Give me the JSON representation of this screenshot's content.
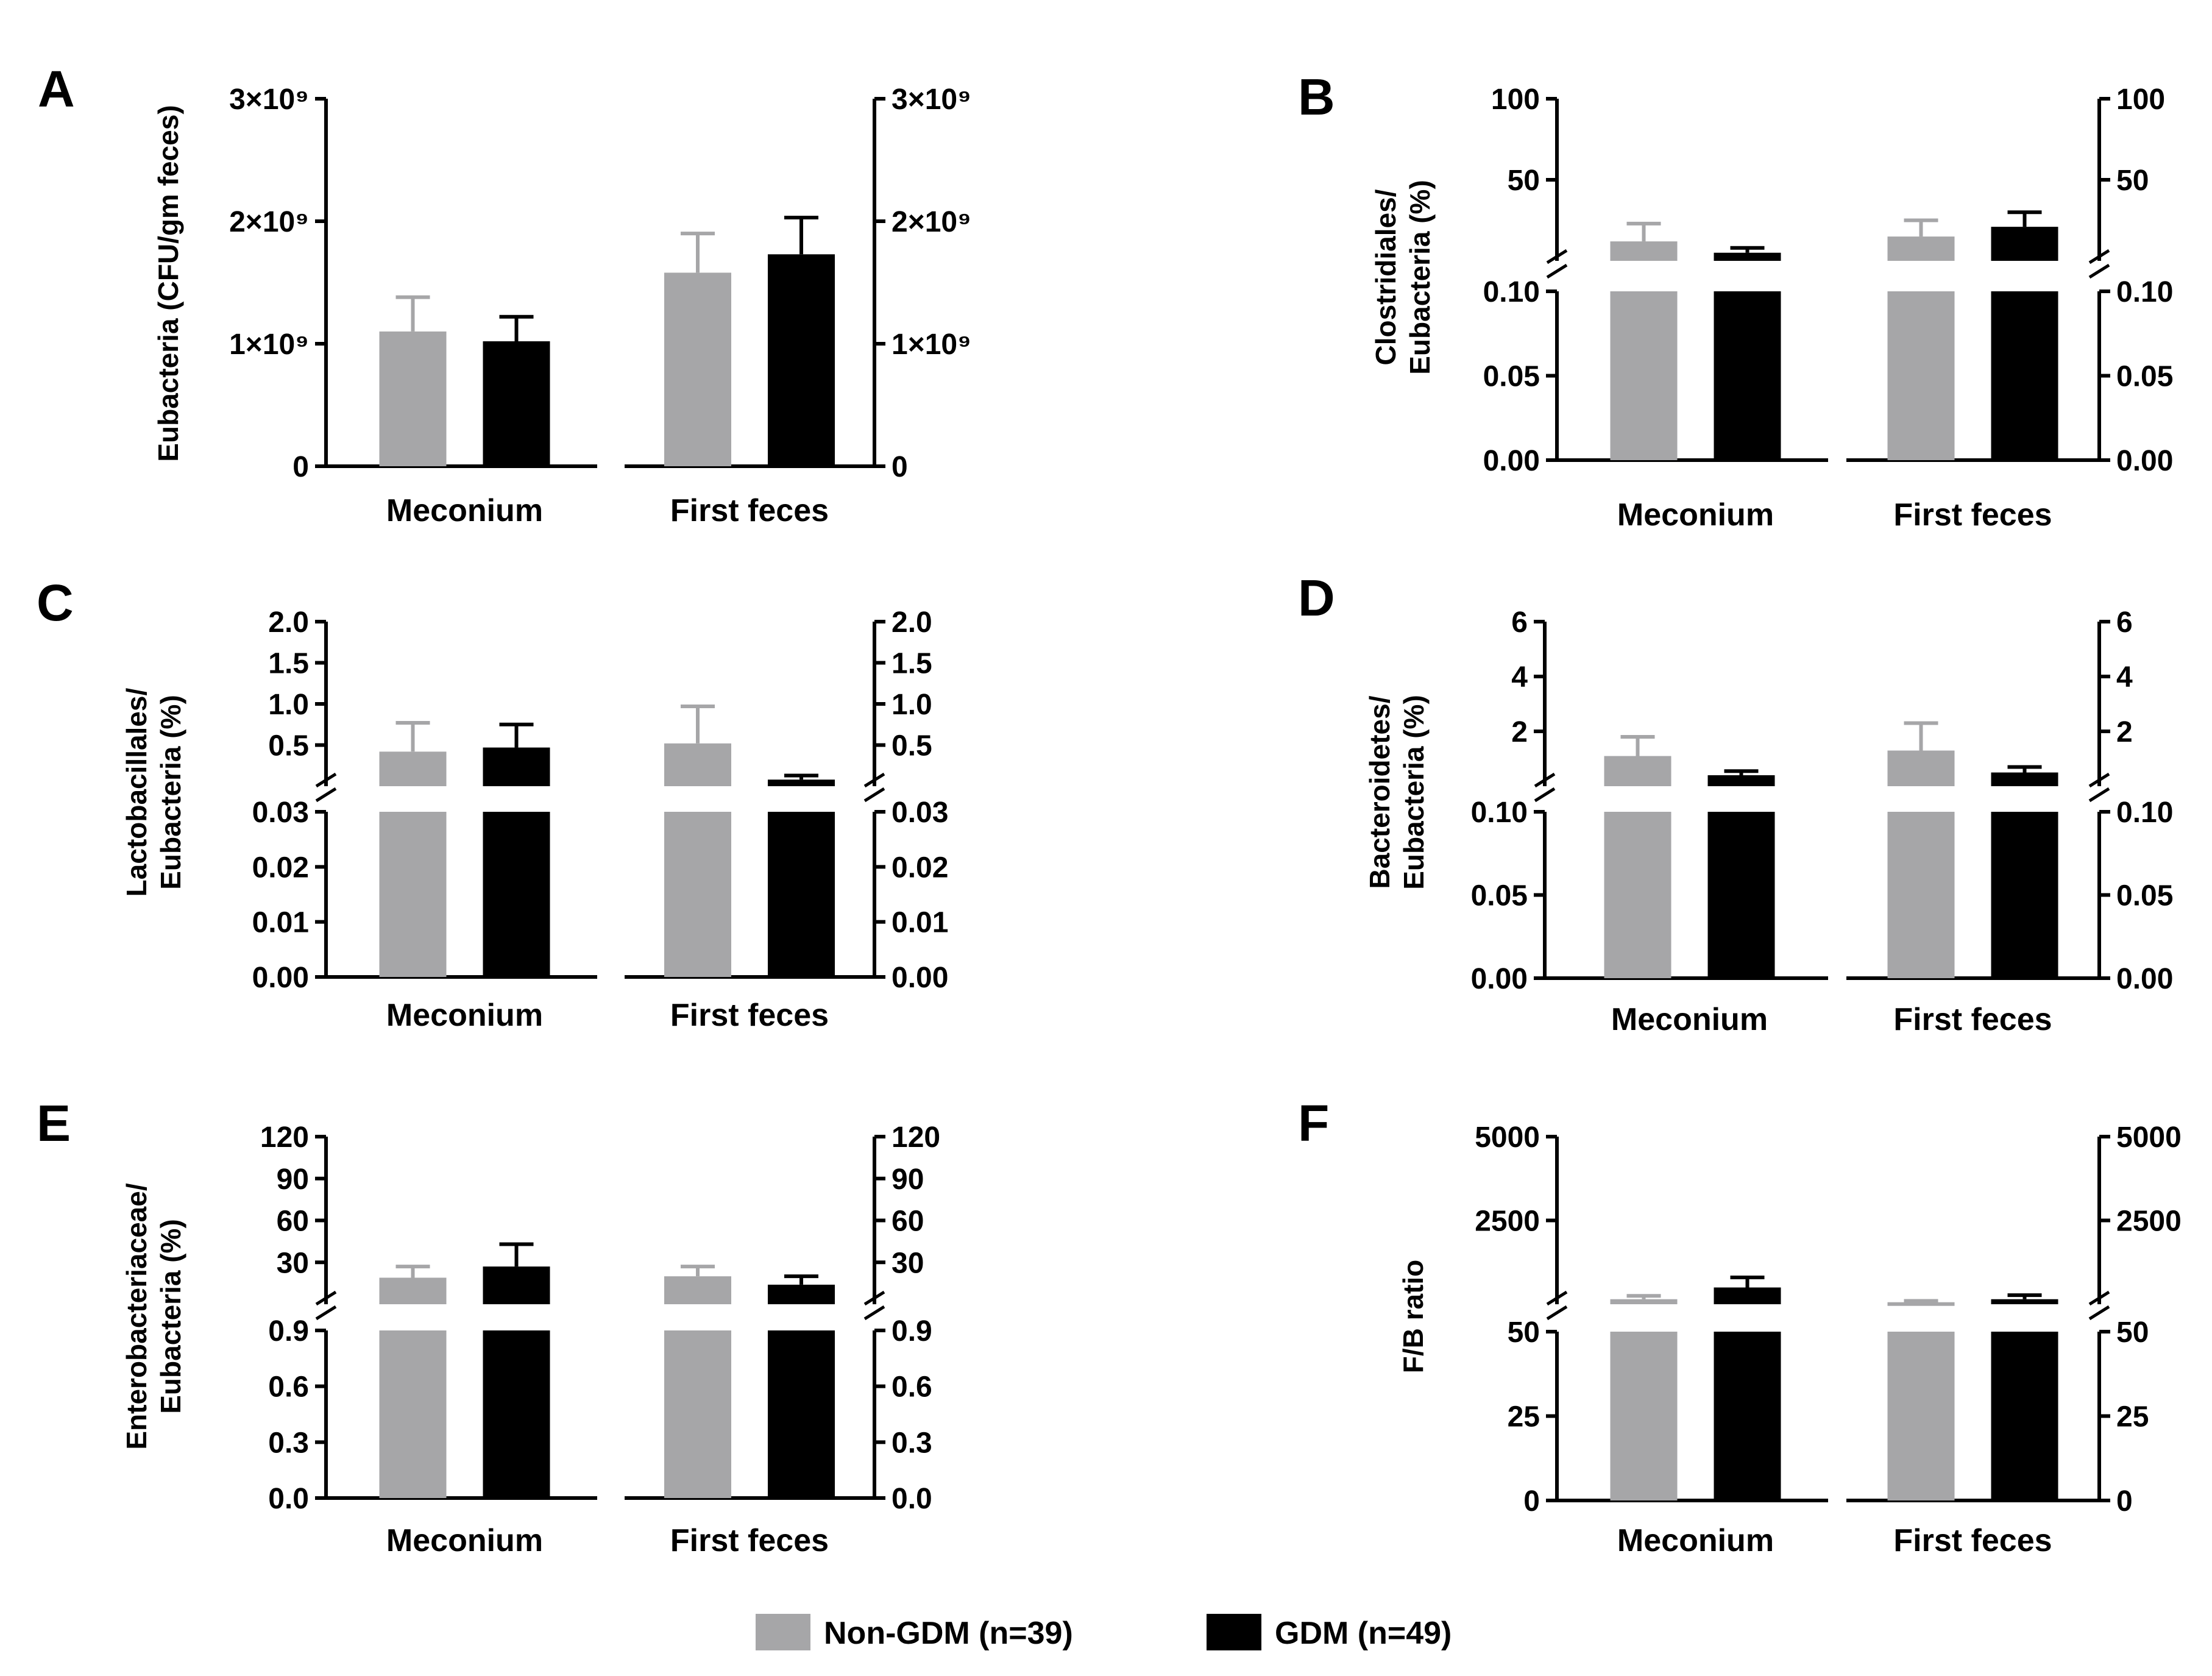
{
  "colors": {
    "non_gdm": "#a6a6a8",
    "gdm": "#000000"
  },
  "legend": [
    {
      "label": "Non-GDM (n=39)",
      "color": "#a6a6a8"
    },
    {
      "label": "GDM (n=49)",
      "color": "#000000"
    }
  ],
  "chart_data": [
    {
      "panel": "A",
      "type": "bar",
      "broken": false,
      "ylabel_lines": [
        "Eubacteria (CFU/gm feces)"
      ],
      "categories": [
        "Meconium",
        "First feces"
      ],
      "ylim": [
        0,
        3000000000
      ],
      "ticks": [
        "0",
        "1×10⁹",
        "2×10⁹",
        "3×10⁹"
      ],
      "series": [
        {
          "name": "Non-GDM (n=39)",
          "values": [
            1100000000,
            1580000000
          ],
          "errors": [
            280000000,
            320000000
          ]
        },
        {
          "name": "GDM (n=49)",
          "values": [
            1020000000,
            1730000000
          ],
          "errors": [
            200000000,
            300000000
          ]
        }
      ]
    },
    {
      "panel": "B",
      "type": "bar",
      "broken": true,
      "ylabel_lines": [
        "Clostridiales/",
        "Eubacteria (%)"
      ],
      "categories": [
        "Meconium",
        "First feces"
      ],
      "ylim_lower": [
        0,
        0.1
      ],
      "ylim_upper": [
        0,
        100
      ],
      "ticks_lower": [
        "0.00",
        "0.05",
        "0.10"
      ],
      "ticks_upper": [
        "50",
        "100"
      ],
      "series": [
        {
          "name": "Non-GDM (n=39)",
          "values": [
            12,
            15
          ],
          "errors": [
            11,
            10
          ]
        },
        {
          "name": "GDM (n=49)",
          "values": [
            5,
            21
          ],
          "errors": [
            3,
            9
          ]
        }
      ]
    },
    {
      "panel": "C",
      "type": "bar",
      "broken": true,
      "ylabel_lines": [
        "Lactobacillales/",
        "Eubacteria (%)"
      ],
      "categories": [
        "Meconium",
        "First feces"
      ],
      "ylim_lower": [
        0,
        0.03
      ],
      "ylim_upper": [
        0,
        2.0
      ],
      "ticks_lower": [
        "0.00",
        "0.01",
        "0.02",
        "0.03"
      ],
      "ticks_upper": [
        "0.5",
        "1.0",
        "1.5",
        "2.0"
      ],
      "series": [
        {
          "name": "Non-GDM (n=39)",
          "values": [
            0.42,
            0.52
          ],
          "errors": [
            0.35,
            0.45
          ]
        },
        {
          "name": "GDM (n=49)",
          "values": [
            0.47,
            0.08
          ],
          "errors": [
            0.28,
            0.05
          ]
        }
      ]
    },
    {
      "panel": "D",
      "type": "bar",
      "broken": true,
      "ylabel_lines": [
        "Bacteroidetes/",
        "Eubacteria (%)"
      ],
      "categories": [
        "Meconium",
        "First feces"
      ],
      "ylim_lower": [
        0,
        0.1
      ],
      "ylim_upper": [
        0,
        6
      ],
      "ticks_lower": [
        "0.00",
        "0.05",
        "0.10"
      ],
      "ticks_upper": [
        "2",
        "4",
        "6"
      ],
      "series": [
        {
          "name": "Non-GDM (n=39)",
          "values": [
            1.1,
            1.3
          ],
          "errors": [
            0.7,
            1.0
          ]
        },
        {
          "name": "GDM (n=49)",
          "values": [
            0.4,
            0.5
          ],
          "errors": [
            0.15,
            0.2
          ]
        }
      ]
    },
    {
      "panel": "E",
      "type": "bar",
      "broken": true,
      "ylabel_lines": [
        "Enterobacteriaceae/",
        "Eubacteria (%)"
      ],
      "categories": [
        "Meconium",
        "First feces"
      ],
      "ylim_lower": [
        0,
        0.9
      ],
      "ylim_upper": [
        0,
        120
      ],
      "ticks_lower": [
        "0.0",
        "0.3",
        "0.6",
        "0.9"
      ],
      "ticks_upper": [
        "30",
        "60",
        "90",
        "120"
      ],
      "series": [
        {
          "name": "Non-GDM (n=39)",
          "values": [
            19,
            20
          ],
          "errors": [
            8,
            7
          ]
        },
        {
          "name": "GDM (n=49)",
          "values": [
            27,
            14
          ],
          "errors": [
            16,
            6
          ]
        }
      ]
    },
    {
      "panel": "F",
      "type": "bar",
      "broken": true,
      "ylabel_lines": [
        "F/B ratio"
      ],
      "categories": [
        "Meconium",
        "First feces"
      ],
      "ylim_lower": [
        0,
        50
      ],
      "ylim_upper": [
        0,
        5000
      ],
      "ticks_lower": [
        "0",
        "25",
        "50"
      ],
      "ticks_upper": [
        "2500",
        "5000"
      ],
      "series": [
        {
          "name": "Non-GDM (n=39)",
          "values": [
            150,
            60
          ],
          "errors": [
            100,
            40
          ]
        },
        {
          "name": "GDM (n=49)",
          "values": [
            500,
            150
          ],
          "errors": [
            300,
            120
          ]
        }
      ]
    }
  ]
}
